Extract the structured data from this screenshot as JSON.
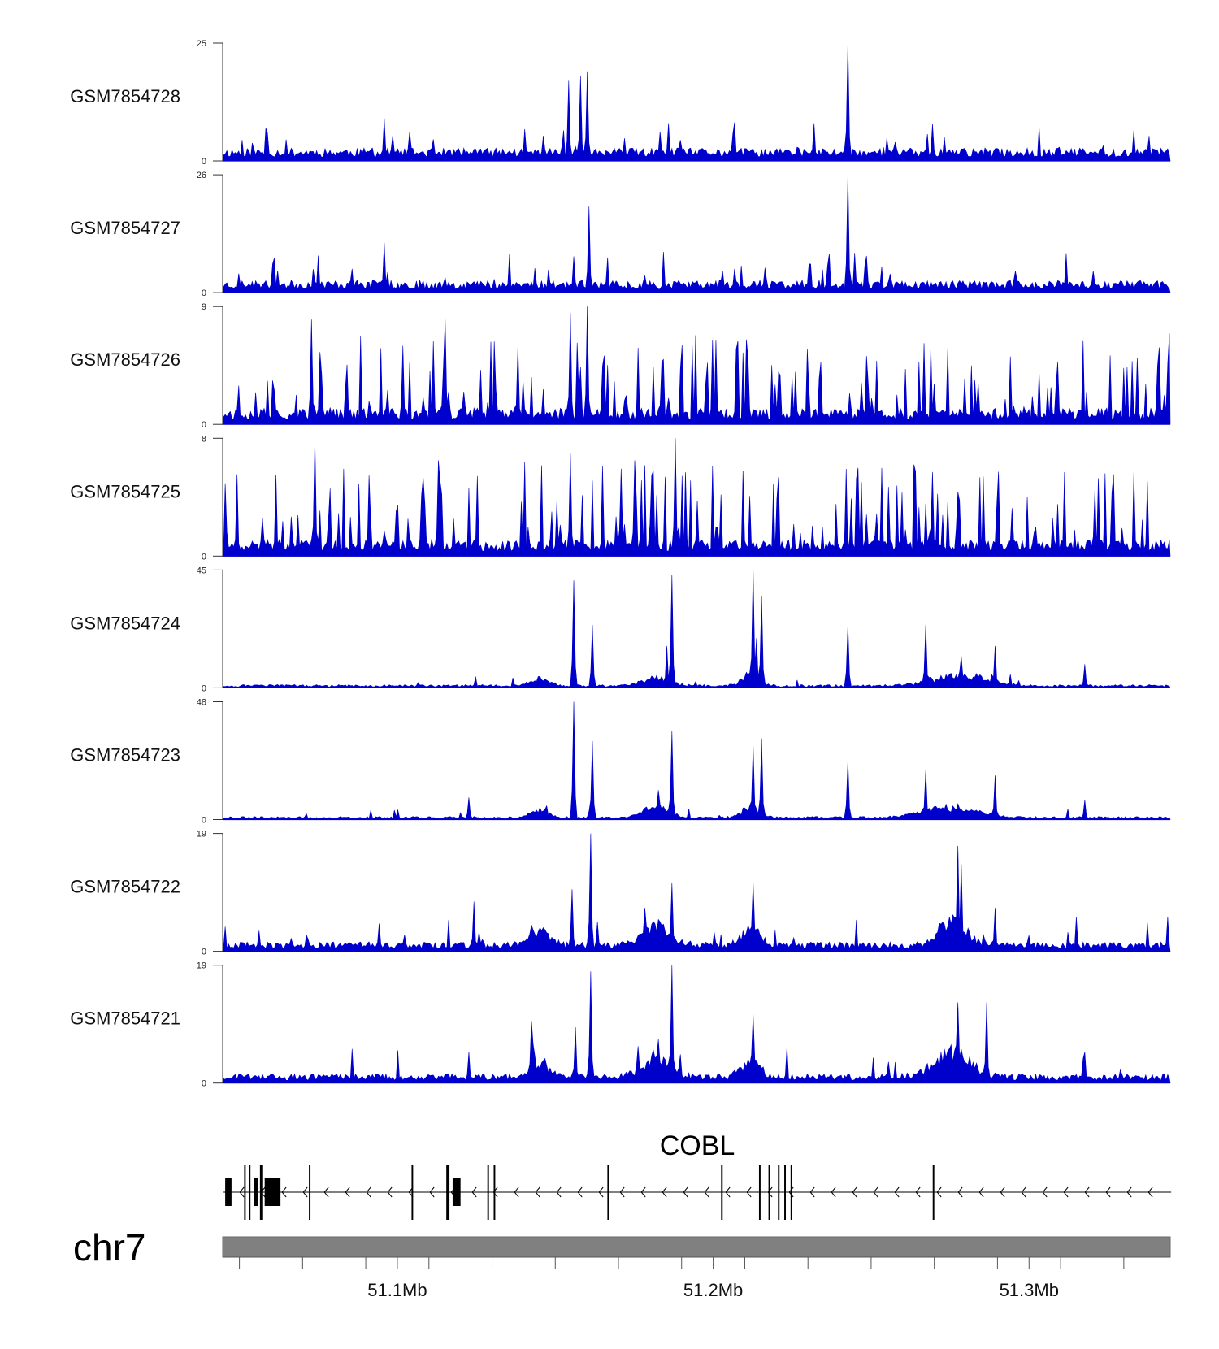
{
  "chart_data": {
    "type": "genome-browser-coverage",
    "series_color": "#0000cc",
    "chromosome": "chr7",
    "gene": {
      "name": "COBL",
      "strand": "-",
      "start_mb": 51.045,
      "end_mb": 51.345,
      "exons_mb": [
        [
          51.0455,
          51.0475
        ],
        [
          51.0515,
          51.052
        ],
        [
          51.053,
          51.0535
        ],
        [
          51.0545,
          51.056
        ],
        [
          51.0565,
          51.0575
        ],
        [
          51.058,
          51.063
        ],
        [
          51.072,
          51.0725
        ],
        [
          51.1045,
          51.105
        ],
        [
          51.1155,
          51.1165
        ],
        [
          51.1175,
          51.12
        ],
        [
          51.1285,
          51.129
        ],
        [
          51.1305,
          51.131
        ],
        [
          51.1665,
          51.167
        ],
        [
          51.2025,
          51.203
        ],
        [
          51.2145,
          51.215
        ],
        [
          51.2175,
          51.218
        ],
        [
          51.2205,
          51.221
        ],
        [
          51.2225,
          51.223
        ],
        [
          51.2245,
          51.225
        ],
        [
          51.2695,
          51.27
        ]
      ]
    },
    "x_axis": {
      "range_mb": [
        51.0447,
        51.3447
      ],
      "tick_marks_mb": [
        51.05,
        51.07,
        51.09,
        51.11,
        51.13,
        51.15,
        51.17,
        51.19,
        51.21,
        51.23,
        51.25,
        51.27,
        51.29,
        51.31,
        51.33
      ],
      "labels": [
        {
          "mb": 51.1,
          "text": "51.1Mb"
        },
        {
          "mb": 51.2,
          "text": "51.2Mb"
        },
        {
          "mb": 51.3,
          "text": "51.3Mb"
        }
      ]
    },
    "tracks": [
      {
        "name": "GSM7854728",
        "ymin": "0",
        "ymax": "25",
        "max": 25,
        "noise": 2.2,
        "spike_rate": 0.06,
        "spike_max": 7,
        "seed": 11,
        "peaks": [
          [
            51.096,
            9
          ],
          [
            51.154,
            17
          ],
          [
            51.158,
            18
          ],
          [
            51.16,
            19
          ],
          [
            51.186,
            8
          ],
          [
            51.2425,
            25
          ],
          [
            51.232,
            8
          ]
        ]
      },
      {
        "name": "GSM7854727",
        "ymin": "0",
        "ymax": "26",
        "max": 26,
        "noise": 2.2,
        "spike_rate": 0.06,
        "spike_max": 7,
        "seed": 23,
        "peaks": [
          [
            51.096,
            11
          ],
          [
            51.156,
            8
          ],
          [
            51.1605,
            19
          ],
          [
            51.2425,
            26
          ],
          [
            51.236,
            6
          ]
        ]
      },
      {
        "name": "GSM7854726",
        "ymin": "0",
        "ymax": "9",
        "max": 9,
        "noise": 1.0,
        "spike_rate": 0.22,
        "spike_max": 6,
        "seed": 37,
        "peaks": [
          [
            51.073,
            8
          ],
          [
            51.115,
            8
          ],
          [
            51.155,
            8.5
          ],
          [
            51.16,
            9
          ],
          [
            51.102,
            6
          ],
          [
            51.138,
            6
          ]
        ]
      },
      {
        "name": "GSM7854725",
        "ymin": "0",
        "ymax": "8",
        "max": 8,
        "noise": 0.9,
        "spike_rate": 0.24,
        "spike_max": 5.5,
        "seed": 41,
        "peaks": [
          [
            51.074,
            8
          ],
          [
            51.155,
            7
          ],
          [
            51.188,
            8
          ],
          [
            51.113,
            6.5
          ],
          [
            51.175,
            6.5
          ]
        ]
      },
      {
        "name": "GSM7854724",
        "ymin": "0",
        "ymax": "45",
        "max": 45,
        "noise": 1.0,
        "spike_rate": 0.02,
        "spike_max": 4,
        "seed": 53,
        "peaks": [
          [
            51.15,
            2
          ],
          [
            51.1558,
            41
          ],
          [
            51.1615,
            24
          ],
          [
            51.1855,
            16
          ],
          [
            51.187,
            43
          ],
          [
            51.2125,
            17
          ],
          [
            51.2135,
            19
          ],
          [
            51.2128,
            45
          ],
          [
            51.2155,
            35
          ],
          [
            51.2425,
            24
          ],
          [
            51.2675,
            24
          ],
          [
            51.2895,
            16
          ],
          [
            51.3175,
            9
          ],
          [
            51.2785,
            12
          ]
        ],
        "humps": [
          [
            51.145,
            2.5,
            0.004
          ],
          [
            51.182,
            3,
            0.006
          ],
          [
            51.212,
            4,
            0.004
          ],
          [
            51.278,
            4,
            0.012
          ]
        ]
      },
      {
        "name": "GSM7854723",
        "ymin": "0",
        "ymax": "48",
        "max": 48,
        "noise": 1.0,
        "spike_rate": 0.02,
        "spike_max": 4,
        "seed": 67,
        "peaks": [
          [
            51.1225,
            9
          ],
          [
            51.1558,
            48
          ],
          [
            51.1615,
            32
          ],
          [
            51.1825,
            12
          ],
          [
            51.187,
            36
          ],
          [
            51.2125,
            30
          ],
          [
            51.2155,
            33
          ],
          [
            51.2425,
            24
          ],
          [
            51.2675,
            20
          ],
          [
            51.2895,
            18
          ],
          [
            51.3175,
            8
          ]
        ],
        "humps": [
          [
            51.145,
            3,
            0.004
          ],
          [
            51.182,
            4,
            0.006
          ],
          [
            51.212,
            4,
            0.004
          ],
          [
            51.275,
            4,
            0.012
          ]
        ]
      },
      {
        "name": "GSM7854722",
        "ymin": "0",
        "ymax": "19",
        "max": 19,
        "noise": 1.2,
        "spike_rate": 0.04,
        "spike_max": 4.5,
        "seed": 79,
        "peaks": [
          [
            51.1245,
            8
          ],
          [
            51.1555,
            10
          ],
          [
            51.161,
            19
          ],
          [
            51.187,
            11
          ],
          [
            51.2125,
            11
          ],
          [
            51.2775,
            17
          ],
          [
            51.2785,
            14
          ],
          [
            51.2895,
            7
          ],
          [
            51.1785,
            7
          ]
        ],
        "humps": [
          [
            51.145,
            2.5,
            0.004
          ],
          [
            51.182,
            3,
            0.006
          ],
          [
            51.212,
            3,
            0.004
          ],
          [
            51.276,
            4,
            0.006
          ]
        ]
      },
      {
        "name": "GSM7854721",
        "ymin": "0",
        "ymax": "19",
        "max": 19,
        "noise": 1.2,
        "spike_rate": 0.04,
        "spike_max": 5,
        "seed": 97,
        "peaks": [
          [
            51.1425,
            10
          ],
          [
            51.1565,
            9
          ],
          [
            51.161,
            18
          ],
          [
            51.187,
            19
          ],
          [
            51.2125,
            11
          ],
          [
            51.2775,
            13
          ],
          [
            51.2865,
            13
          ],
          [
            51.3175,
            5
          ],
          [
            51.1225,
            5
          ]
        ],
        "humps": [
          [
            51.145,
            2.5,
            0.004
          ],
          [
            51.182,
            3,
            0.006
          ],
          [
            51.212,
            3,
            0.004
          ],
          [
            51.276,
            4,
            0.008
          ]
        ]
      }
    ]
  }
}
